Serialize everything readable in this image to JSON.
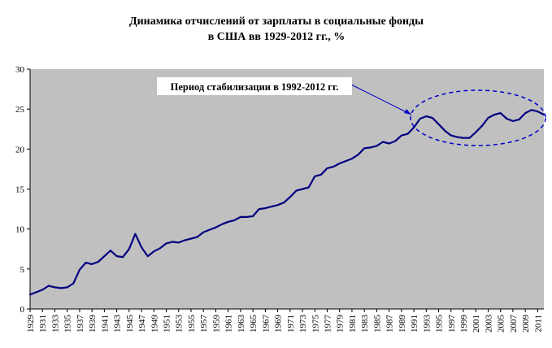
{
  "chart_data": {
    "type": "line",
    "title_line1": "Динамика отчислений от зарплаты в социальные фонды",
    "title_line2": "в США вв 1929-2012 гг., %",
    "xlabel": "",
    "ylabel": "",
    "ylim": [
      0,
      30
    ],
    "yticks": [
      0,
      5,
      10,
      15,
      20,
      25,
      30
    ],
    "xlim": [
      1929,
      2012
    ],
    "grid": false,
    "legend": "none",
    "plot_background": "#c0c0c0",
    "line_color": "#000080",
    "annotation": {
      "text": "Период стабилизации в 1992-2012 гг.",
      "highlight_range": [
        1992,
        2012
      ]
    },
    "x_tick_labels": [
      "1929",
      "1931",
      "1933",
      "1935",
      "1937",
      "1939",
      "1941",
      "1943",
      "1945",
      "1947",
      "1949",
      "1951",
      "1953",
      "1955",
      "1957",
      "1959",
      "1961",
      "1963",
      "1965",
      "1967",
      "1969",
      "1971",
      "1973",
      "1975",
      "1977",
      "1979",
      "1981",
      "1983",
      "1985",
      "1987",
      "1989",
      "1991",
      "1993",
      "1995",
      "1997",
      "1999",
      "2001",
      "2003",
      "2005",
      "2007",
      "2009",
      "2011"
    ],
    "series": [
      {
        "x": [
          1929,
          1930,
          1931,
          1932,
          1933,
          1934,
          1935,
          1936,
          1937,
          1938,
          1939,
          1940,
          1941,
          1942,
          1943,
          1944,
          1945,
          1946,
          1947,
          1948,
          1949,
          1950,
          1951,
          1952,
          1953,
          1954,
          1955,
          1956,
          1957,
          1958,
          1959,
          1960,
          1961,
          1962,
          1963,
          1964,
          1965,
          1966,
          1967,
          1968,
          1969,
          1970,
          1971,
          1972,
          1973,
          1974,
          1975,
          1976,
          1977,
          1978,
          1979,
          1980,
          1981,
          1982,
          1983,
          1984,
          1985,
          1986,
          1987,
          1988,
          1989,
          1990,
          1991,
          1992,
          1993,
          1994,
          1995,
          1996,
          1997,
          1998,
          1999,
          2000,
          2001,
          2002,
          2003,
          2004,
          2005,
          2006,
          2007,
          2008,
          2009,
          2010,
          2011,
          2012
        ],
        "values": [
          1.8,
          2.1,
          2.4,
          2.9,
          2.7,
          2.6,
          2.7,
          3.2,
          4.9,
          5.8,
          5.6,
          5.9,
          6.6,
          7.3,
          6.6,
          6.5,
          7.5,
          9.4,
          7.7,
          6.6,
          7.2,
          7.6,
          8.2,
          8.4,
          8.3,
          8.6,
          8.8,
          9.0,
          9.6,
          9.9,
          10.2,
          10.6,
          10.9,
          11.1,
          11.5,
          11.5,
          11.6,
          12.5,
          12.6,
          12.8,
          13.0,
          13.3,
          14.0,
          14.8,
          15.0,
          15.2,
          16.6,
          16.8,
          17.6,
          17.8,
          18.2,
          18.5,
          18.8,
          19.3,
          20.1,
          20.2,
          20.4,
          20.9,
          20.7,
          21.0,
          21.7,
          21.9,
          22.7,
          23.8,
          24.1,
          23.9,
          23.1,
          22.3,
          21.7,
          21.5,
          21.4,
          21.4,
          22.1,
          22.9,
          23.9,
          24.3,
          24.5,
          23.8,
          23.5,
          23.7,
          24.5,
          24.9,
          24.7,
          24.3
        ]
      }
    ]
  }
}
